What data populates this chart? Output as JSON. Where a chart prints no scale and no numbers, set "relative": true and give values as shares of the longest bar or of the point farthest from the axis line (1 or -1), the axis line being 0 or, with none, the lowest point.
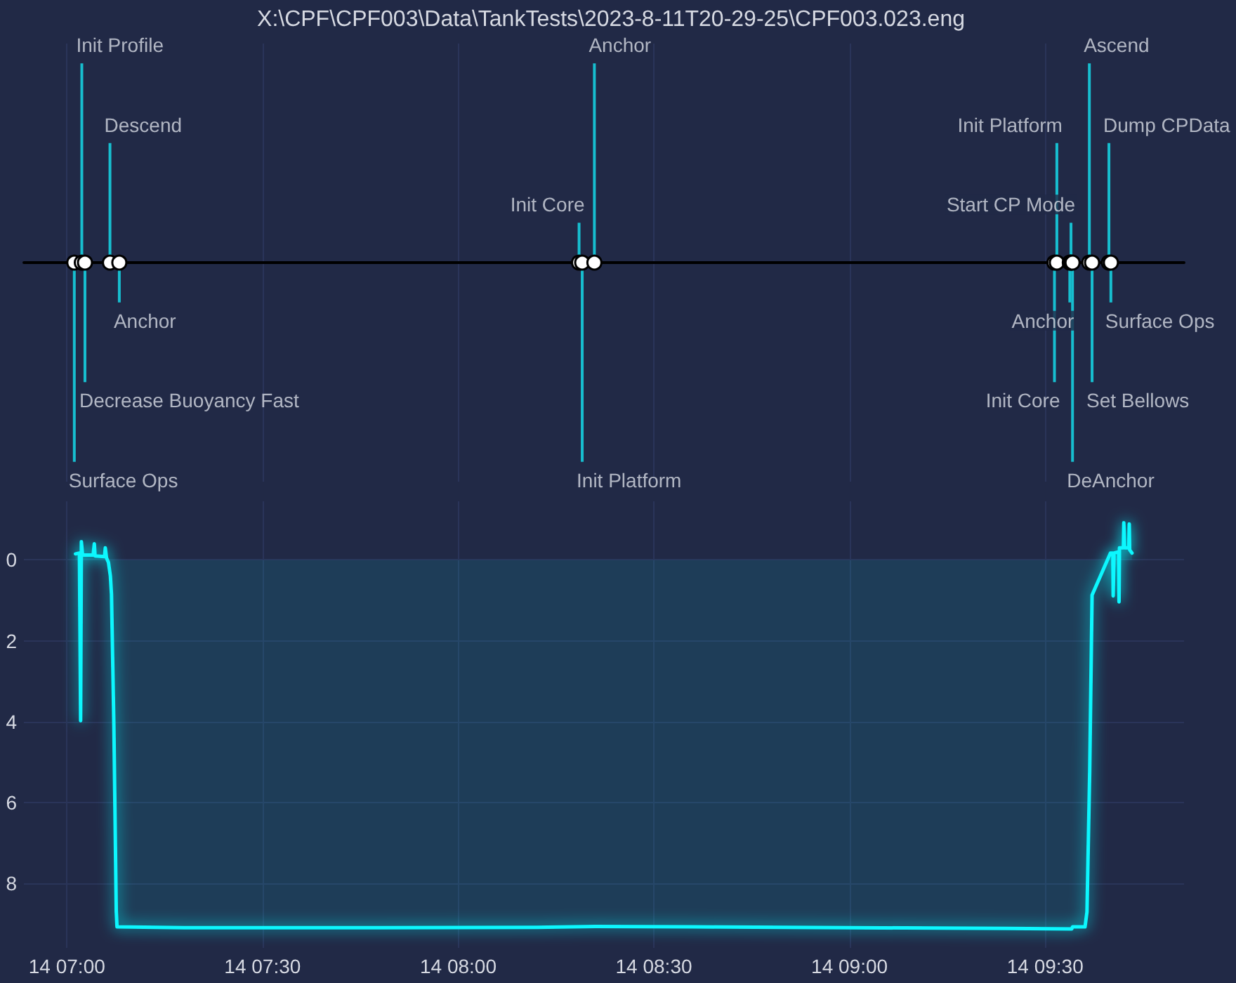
{
  "chart_data": [
    {
      "type": "bar",
      "title": "X:\\CPF\\CPF003\\Data\\TankTests\\2023-8-11T20-29-25\\CPF003.023.eng",
      "relative": true,
      "grid": "x",
      "tick_labels": false,
      "x": [
        "2023-08-14T07:01:08",
        "2023-08-14T07:02:17",
        "2023-08-14T07:02:46",
        "2023-08-14T07:06:36",
        "2023-08-14T07:08:02",
        "2023-08-14T08:18:32",
        "2023-08-14T08:19:01",
        "2023-08-14T08:20:53",
        "2023-08-14T09:31:26",
        "2023-08-14T09:31:48",
        "2023-08-14T09:33:47",
        "2023-08-14T09:33:58",
        "2023-08-14T09:34:12",
        "2023-08-14T09:36:47",
        "2023-08-14T09:37:12",
        "2023-08-14T09:39:47",
        "2023-08-14T09:40:05"
      ],
      "series": [
        {
          "color": "#17becf",
          "values": [
            -1,
            1,
            -0.6,
            0.6,
            -0.2,
            0.2,
            -1,
            1,
            -0.6,
            0.6,
            -0.2,
            0.2,
            -1,
            1,
            -0.6,
            0.6,
            -0.2
          ]
        },
        {
          "type": "scatter",
          "color": "#ffffff",
          "marker": "circle",
          "values": [
            0,
            0,
            0,
            0,
            0,
            0,
            0,
            0,
            0,
            0,
            0,
            0,
            0,
            0,
            0,
            0,
            0
          ]
        }
      ],
      "annotations": [
        {
          "text": "Surface Ops",
          "x": "2023-08-14T07:01:08",
          "y": -1
        },
        {
          "text": "Init Profile",
          "x": "2023-08-14T07:02:17",
          "y": 1
        },
        {
          "text": "Decrease Buoyancy Fast",
          "x": "2023-08-14T07:02:46",
          "y": -0.6
        },
        {
          "text": "Descend",
          "x": "2023-08-14T07:06:36",
          "y": 0.6
        },
        {
          "text": "Anchor",
          "x": "2023-08-14T07:08:02",
          "y": -0.2
        },
        {
          "text": "Init Core",
          "x": "2023-08-14T08:18:32",
          "y": 0.2
        },
        {
          "text": "Init Platform",
          "x": "2023-08-14T08:19:01",
          "y": -1
        },
        {
          "text": "Anchor",
          "x": "2023-08-14T08:20:53",
          "y": 1
        },
        {
          "text": "Init Core",
          "x": "2023-08-14T09:31:26",
          "y": -0.6
        },
        {
          "text": "Init Platform",
          "x": "2023-08-14T09:31:48",
          "y": 0.6
        },
        {
          "text": "Anchor",
          "x": "2023-08-14T09:33:47",
          "y": -0.2
        },
        {
          "text": "Start CP Mode",
          "x": "2023-08-14T09:33:58",
          "y": 0.2
        },
        {
          "text": "DeAnchor",
          "x": "2023-08-14T09:34:12",
          "y": -1
        },
        {
          "text": "Ascend",
          "x": "2023-08-14T09:36:47",
          "y": 1
        },
        {
          "text": "Set Bellows",
          "x": "2023-08-14T09:37:12",
          "y": -0.6
        },
        {
          "text": "Dump CPData",
          "x": "2023-08-14T09:39:47",
          "y": 0.6
        },
        {
          "text": "Surface Ops",
          "x": "2023-08-14T09:40:05",
          "y": -0.2
        }
      ],
      "xlim": [
        "2023-08-14T06:53:24",
        "2023-08-14T09:51:18"
      ],
      "xticks": [
        "2023-08-14T07:00",
        "2023-08-14T07:30",
        "2023-08-14T08:00",
        "2023-08-14T08:30",
        "2023-08-14T09:00",
        "2023-08-14T09:30"
      ]
    },
    {
      "type": "area",
      "color": "#08f7fe",
      "grid": true,
      "x": [
        "2023-08-14T07:01:19",
        "2023-08-14T07:01:55",
        "2023-08-14T07:02:06",
        "2023-08-14T07:02:13",
        "2023-08-14T07:02:24",
        "2023-08-14T07:04:01",
        "2023-08-14T07:04:12",
        "2023-08-14T07:04:19",
        "2023-08-14T07:05:46",
        "2023-08-14T07:05:53",
        "2023-08-14T07:06:04",
        "2023-08-14T07:06:22",
        "2023-08-14T07:06:40",
        "2023-08-14T07:06:50",
        "2023-08-14T07:07:12",
        "2023-08-14T07:07:34",
        "2023-08-14T07:07:41",
        "2023-08-14T07:18:00",
        "2023-08-14T07:48:00",
        "2023-08-14T08:12:00",
        "2023-08-14T08:21:00",
        "2023-08-14T08:36:00",
        "2023-08-14T09:00:00",
        "2023-08-14T09:24:00",
        "2023-08-14T09:34:05",
        "2023-08-14T09:34:12",
        "2023-08-14T09:36:07",
        "2023-08-14T09:36:25",
        "2023-08-14T09:36:50",
        "2023-08-14T09:37:12",
        "2023-08-14T09:40:01",
        "2023-08-14T09:40:23",
        "2023-08-14T09:40:26",
        "2023-08-14T09:40:34",
        "2023-08-14T09:41:17",
        "2023-08-14T09:41:20",
        "2023-08-14T09:41:24",
        "2023-08-14T09:42:00",
        "2023-08-14T09:42:04",
        "2023-08-14T09:42:11",
        "2023-08-14T09:42:50",
        "2023-08-14T09:42:54",
        "2023-08-14T09:42:58",
        "2023-08-14T09:43:19"
      ],
      "values": [
        -0.15,
        -0.17,
        3.98,
        -0.45,
        -0.12,
        -0.12,
        -0.4,
        -0.1,
        -0.08,
        -0.3,
        -0.05,
        0.06,
        0.4,
        0.85,
        4.1,
        8.7,
        9.08,
        9.1,
        9.1,
        9.09,
        9.07,
        9.08,
        9.1,
        9.12,
        9.13,
        9.08,
        9.08,
        8.71,
        5.25,
        0.87,
        -0.17,
        -0.17,
        0.89,
        -0.17,
        -0.2,
        1.04,
        -0.3,
        -0.3,
        -0.92,
        -0.3,
        -0.3,
        -0.89,
        -0.25,
        -0.17
      ],
      "xlim": [
        "2023-08-14T06:53:24",
        "2023-08-14T09:51:18"
      ],
      "xticks": [
        {
          "value": "2023-08-14T07:00",
          "label": "14 07:00"
        },
        {
          "value": "2023-08-14T07:30",
          "label": "14 07:30"
        },
        {
          "value": "2023-08-14T08:00",
          "label": "14 08:00"
        },
        {
          "value": "2023-08-14T08:30",
          "label": "14 08:30"
        },
        {
          "value": "2023-08-14T09:00",
          "label": "14 09:00"
        },
        {
          "value": "2023-08-14T09:30",
          "label": "14 09:30"
        }
      ],
      "ylim": [
        9.6,
        -1.45
      ],
      "yticks": [
        0,
        2,
        4,
        6,
        8
      ]
    }
  ]
}
